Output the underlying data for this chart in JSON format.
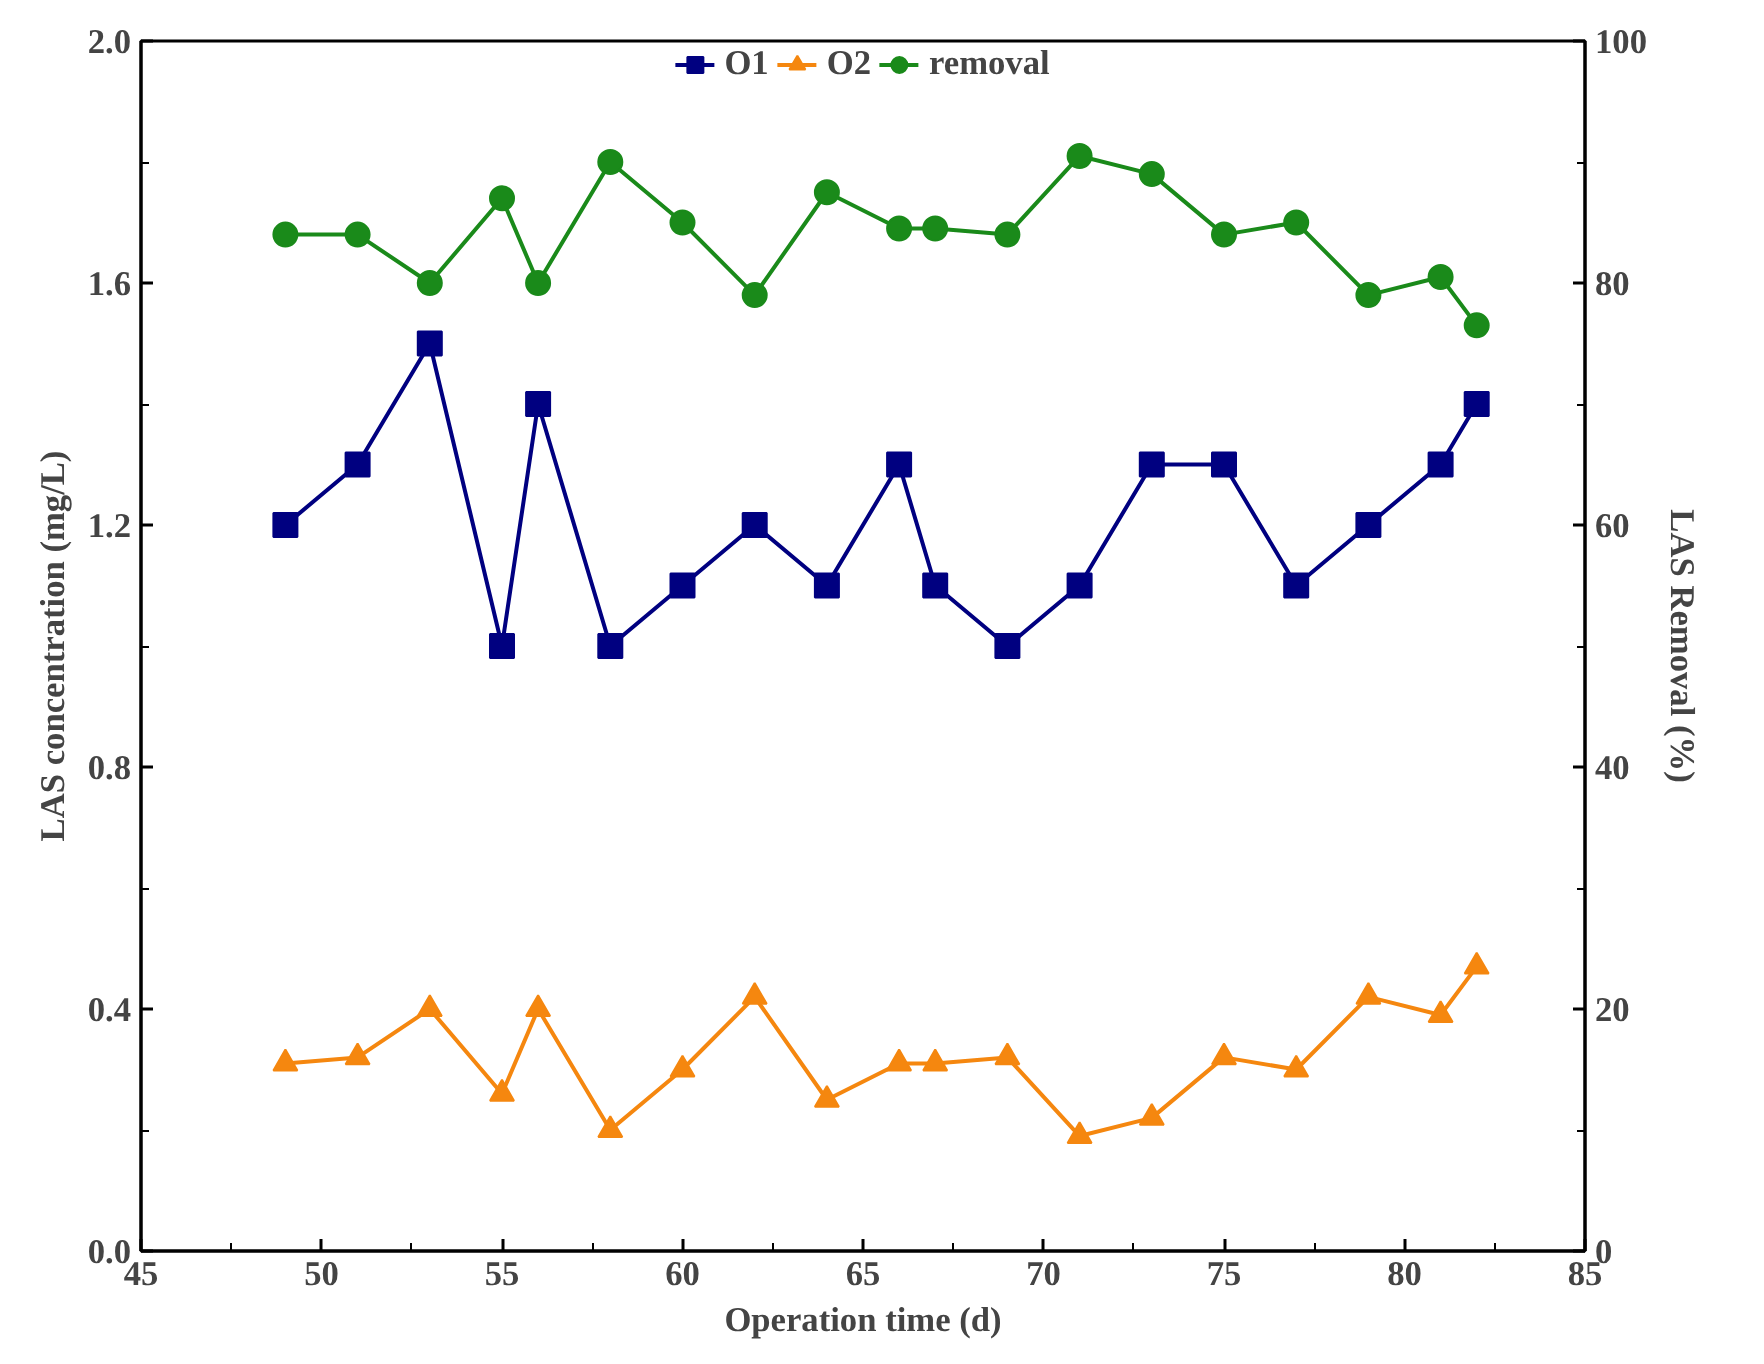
{
  "chart_data": {
    "type": "line",
    "xlabel": "Operation time (d)",
    "ylabel": "LAS concentration (mg/L)",
    "y2label": "LAS Removal (%)",
    "x": [
      49,
      51,
      53,
      55,
      56,
      58,
      60,
      62,
      64,
      66,
      67,
      69,
      71,
      73,
      75,
      77,
      79,
      81,
      82
    ],
    "series": [
      {
        "name": "O1",
        "color": "#000080",
        "marker": "square",
        "values": [
          1.2,
          1.3,
          1.5,
          1.0,
          1.4,
          1.0,
          1.1,
          1.2,
          1.1,
          1.3,
          1.1,
          1.0,
          1.1,
          1.3,
          1.3,
          1.1,
          1.2,
          1.3,
          1.4
        ]
      },
      {
        "name": "O2",
        "color": "#f5870f",
        "marker": "triangle",
        "values": [
          0.31,
          0.32,
          0.4,
          0.26,
          0.4,
          0.2,
          0.3,
          0.42,
          0.25,
          0.31,
          0.31,
          0.32,
          0.19,
          0.22,
          0.32,
          0.3,
          0.42,
          0.39,
          0.47
        ]
      },
      {
        "name": "removal",
        "color": "#1a8a1a",
        "marker": "circle",
        "axis": "y2",
        "values": [
          84,
          84,
          80,
          87,
          80,
          90,
          85,
          79,
          87.5,
          84.5,
          84.5,
          84,
          90.5,
          89,
          84,
          85,
          79,
          80.5,
          76.5
        ]
      }
    ],
    "xlim": [
      45,
      85
    ],
    "xticks": [
      45,
      50,
      55,
      60,
      65,
      70,
      75,
      80,
      85
    ],
    "ylim": [
      0,
      2.0
    ],
    "yticks": [
      {
        "value": 0,
        "label": "0.0"
      },
      {
        "value": 0.4,
        "label": "0.4"
      },
      {
        "value": 0.8,
        "label": "0.8"
      },
      {
        "value": 1.2,
        "label": "1.2"
      },
      {
        "value": 1.6,
        "label": "1.6"
      },
      {
        "value": 2.0,
        "label": "2.0"
      }
    ],
    "y2lim": [
      0,
      100
    ],
    "y2ticks": [
      0,
      20,
      40,
      60,
      80,
      100
    ],
    "grid": false,
    "legend": "top",
    "line_style": "solid"
  }
}
